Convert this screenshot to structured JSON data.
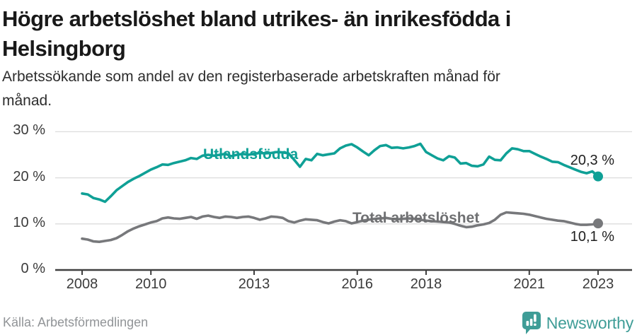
{
  "header": {
    "title_lines": [
      "Högre arbetslöshet bland utrikes- än inrikesfödda i",
      "Helsingborg"
    ],
    "subtitle_lines": [
      "Arbetssökande som andel av den registerbaserade arbetskraften månad för",
      "månad."
    ]
  },
  "footer": {
    "source": "Källa: Arbetsförmedlingen",
    "brand": "Newsworthy",
    "brand_color": "#3F9D97",
    "brand_icon": "speech-bubble-bar-chart"
  },
  "colors": {
    "teal": "#0FA096",
    "gray": "#77787B",
    "axis": "#3F3F3F",
    "grid": "#DCDCDC",
    "value_label": "#1F1F1F"
  },
  "chart_data": {
    "type": "line",
    "title": "Högre arbetslöshet bland utrikes- än inrikesfödda i Helsingborg",
    "subtitle": "Arbetssökande som andel av den registerbaserade arbetskraften månad för månad.",
    "x_unit": "year",
    "x_start": 2008,
    "x_step": 0.166667,
    "x_tick_years": [
      2008,
      2010,
      2013,
      2016,
      2018,
      2021,
      2023
    ],
    "x_tick_labels": [
      "2008",
      "2010",
      "2013",
      "2016",
      "2018",
      "2021",
      "2023"
    ],
    "y_tick_values": [
      0,
      10,
      20,
      30
    ],
    "y_tick_labels": [
      "0 %",
      "10 %",
      "20 %",
      "30 %"
    ],
    "ylim": [
      0,
      32
    ],
    "grid": true,
    "legend": "inline-labels",
    "series": [
      {
        "name": "Utlandsfödda",
        "label": "Utlandsfödda",
        "color": "#0FA096",
        "end_label": "20,3 %",
        "end_value": 20.3,
        "values": [
          16.6,
          16.4,
          15.6,
          15.3,
          14.8,
          16.0,
          17.3,
          18.2,
          19.1,
          19.8,
          20.4,
          21.1,
          21.8,
          22.3,
          22.9,
          22.8,
          23.2,
          23.5,
          23.8,
          24.3,
          24.1,
          24.8,
          25.0,
          24.8,
          25.0,
          25.2,
          24.7,
          25.0,
          25.2,
          25.0,
          25.2,
          25.4,
          25.3,
          25.4,
          25.6,
          25.5,
          25.3,
          23.9,
          22.4,
          24.1,
          23.8,
          25.2,
          24.9,
          25.1,
          25.3,
          26.4,
          27.0,
          27.3,
          26.6,
          25.7,
          24.9,
          26.0,
          26.9,
          27.1,
          26.5,
          26.6,
          26.4,
          26.6,
          26.9,
          27.4,
          25.6,
          24.9,
          24.2,
          23.8,
          24.7,
          24.4,
          23.1,
          23.2,
          22.6,
          22.5,
          22.9,
          24.6,
          23.9,
          23.8,
          25.3,
          26.4,
          26.2,
          25.8,
          25.8,
          25.2,
          24.6,
          24.1,
          23.5,
          23.4,
          22.8,
          22.3,
          21.8,
          21.3,
          21.0,
          21.4,
          20.3
        ]
      },
      {
        "name": "Total arbetslöshet",
        "label": "Total arbetslöshet",
        "color": "#77787B",
        "end_label": "10,1 %",
        "end_value": 10.1,
        "values": [
          6.8,
          6.6,
          6.2,
          6.1,
          6.3,
          6.5,
          6.9,
          7.6,
          8.4,
          9.0,
          9.5,
          9.9,
          10.3,
          10.6,
          11.2,
          11.4,
          11.2,
          11.1,
          11.3,
          11.5,
          11.1,
          11.6,
          11.8,
          11.5,
          11.3,
          11.6,
          11.5,
          11.3,
          11.5,
          11.6,
          11.3,
          10.9,
          11.2,
          11.6,
          11.5,
          11.3,
          10.6,
          10.3,
          10.7,
          11.0,
          10.9,
          10.8,
          10.4,
          10.1,
          10.5,
          10.8,
          10.6,
          10.1,
          10.4,
          10.7,
          10.9,
          11.1,
          11.2,
          11.3,
          11.1,
          11.0,
          11.1,
          11.2,
          11.1,
          10.9,
          10.7,
          10.6,
          10.5,
          10.4,
          10.3,
          10.0,
          9.6,
          9.3,
          9.4,
          9.7,
          9.9,
          10.2,
          10.9,
          12.0,
          12.5,
          12.4,
          12.3,
          12.2,
          12.0,
          11.7,
          11.4,
          11.1,
          10.9,
          10.7,
          10.6,
          10.3,
          10.0,
          9.8,
          9.8,
          9.9,
          10.1
        ]
      }
    ]
  }
}
